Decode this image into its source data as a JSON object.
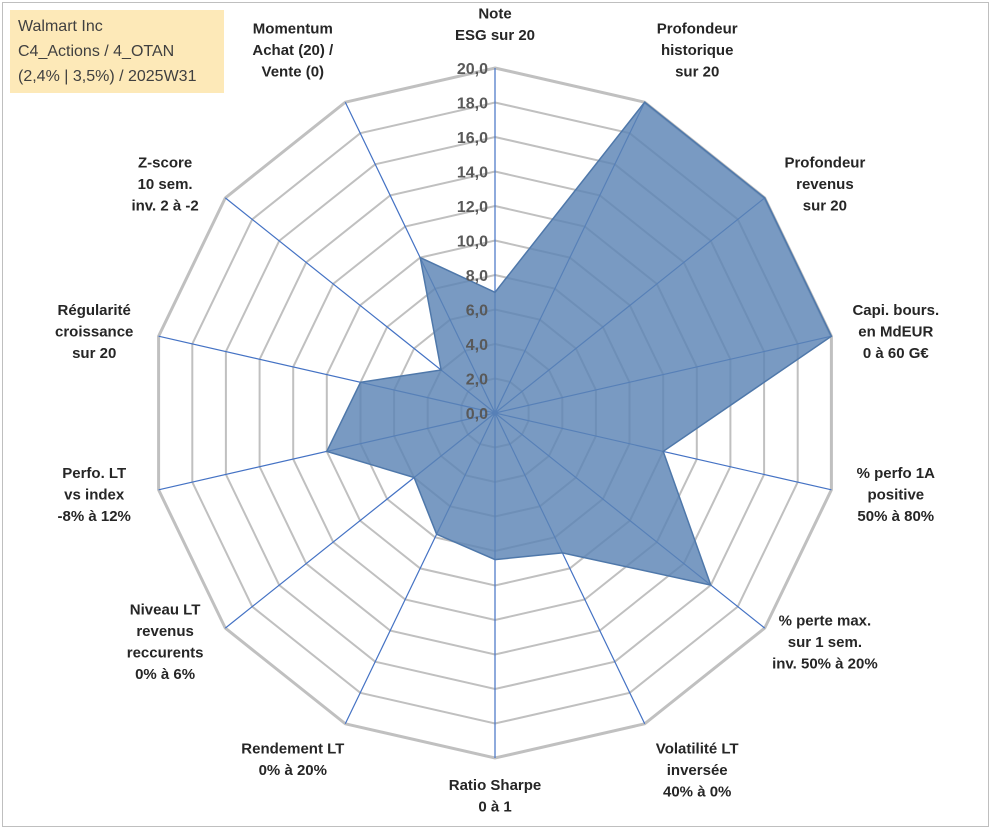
{
  "info": {
    "line1": "Walmart Inc",
    "line2": "C4_Actions / 4_OTAN",
    "line3": "(2,4% | 3,5%) / 2025W31"
  },
  "colors": {
    "fill": "#5b84b5",
    "stroke": "#4f78aa",
    "grid": "#c0c0c0",
    "spoke": "#4472c4"
  },
  "chart_data": {
    "type": "radar",
    "rmin": 0,
    "rmax": 20,
    "tick_step": 2,
    "tick_labels": [
      "0,0",
      "2,0",
      "4,0",
      "6,0",
      "8,0",
      "10,0",
      "12,0",
      "14,0",
      "16,0",
      "18,0",
      "20,0"
    ],
    "categories": [
      [
        "Note",
        "ESG sur 20"
      ],
      [
        "Profondeur",
        "historique",
        "sur 20"
      ],
      [
        "Profondeur",
        "revenus",
        "sur 20"
      ],
      [
        "Capi. bours.",
        "en MdEUR",
        "0 à 60 G€"
      ],
      [
        "% perfo 1A",
        "positive",
        "50% à 80%"
      ],
      [
        "% perte max.",
        "sur 1 sem.",
        "inv. 50% à 20%"
      ],
      [
        "Volatilité LT",
        "inversée",
        "40% à 0%"
      ],
      [
        "Ratio Sharpe",
        "0 à 1"
      ],
      [
        "Rendement LT",
        "0% à 20%"
      ],
      [
        "Niveau LT",
        "revenus",
        "reccurents",
        "0% à 6%"
      ],
      [
        "Perfo. LT",
        "vs index",
        "-8% à 12%"
      ],
      [
        "Régularité",
        "croissance",
        "sur 20"
      ],
      [
        "Z-score",
        "10 sem.",
        "inv. 2 à -2"
      ],
      [
        "Momentum",
        "Achat (20) /",
        "Vente (0)"
      ]
    ],
    "values": [
      7.0,
      20.0,
      20.0,
      20.0,
      10.0,
      16.0,
      9.0,
      8.5,
      7.8,
      6.0,
      10.0,
      8.0,
      4.0,
      10.0
    ],
    "grid": true,
    "legend": "none"
  }
}
